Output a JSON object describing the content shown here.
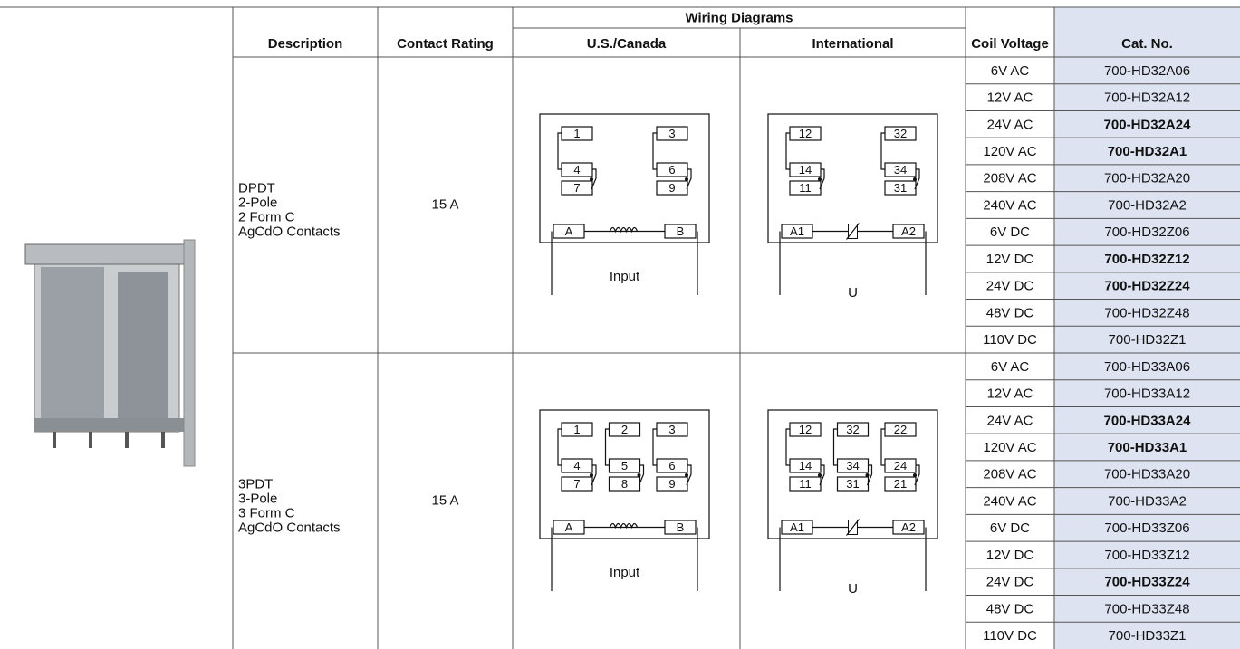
{
  "header": {
    "wiring_diagrams": "Wiring Diagrams",
    "columns": [
      "Description",
      "Contact Rating",
      "U.S./Canada",
      "International",
      "Coil Voltage",
      "Cat. No."
    ]
  },
  "groups": [
    {
      "description": [
        "DPDT",
        "2-Pole",
        "2 Form C",
        "AgCdO Contacts"
      ],
      "contact_rating": "15 A",
      "us_diagram": {
        "top": [
          "1",
          "3"
        ],
        "middle": [
          "4",
          "6"
        ],
        "bottom": [
          "7",
          "9"
        ],
        "coil": [
          "A",
          "B"
        ],
        "label": "Input"
      },
      "intl_diagram": {
        "top": [
          "12",
          "32"
        ],
        "middle": [
          "14",
          "34"
        ],
        "bottom": [
          "11",
          "31"
        ],
        "coil": [
          "A1",
          "A2"
        ],
        "label": "U"
      },
      "rows": [
        {
          "voltage": "6V AC",
          "cat_no": "700-HD32A06",
          "bold": false
        },
        {
          "voltage": "12V AC",
          "cat_no": "700-HD32A12",
          "bold": false
        },
        {
          "voltage": "24V AC",
          "cat_no": "700-HD32A24",
          "bold": true
        },
        {
          "voltage": "120V AC",
          "cat_no": "700-HD32A1",
          "bold": true
        },
        {
          "voltage": "208V AC",
          "cat_no": "700-HD32A20",
          "bold": false
        },
        {
          "voltage": "240V AC",
          "cat_no": "700-HD32A2",
          "bold": false
        },
        {
          "voltage": "6V DC",
          "cat_no": "700-HD32Z06",
          "bold": false
        },
        {
          "voltage": "12V DC",
          "cat_no": "700-HD32Z12",
          "bold": true
        },
        {
          "voltage": "24V DC",
          "cat_no": "700-HD32Z24",
          "bold": true
        },
        {
          "voltage": "48V DC",
          "cat_no": "700-HD32Z48",
          "bold": false
        },
        {
          "voltage": "110V DC",
          "cat_no": "700-HD32Z1",
          "bold": false
        }
      ]
    },
    {
      "description": [
        "3PDT",
        "3-Pole",
        "3 Form C",
        "AgCdO Contacts"
      ],
      "contact_rating": "15 A",
      "us_diagram": {
        "top": [
          "1",
          "2",
          "3"
        ],
        "middle": [
          "4",
          "5",
          "6"
        ],
        "bottom": [
          "7",
          "8",
          "9"
        ],
        "coil": [
          "A",
          "B"
        ],
        "label": "Input"
      },
      "intl_diagram": {
        "top": [
          "12",
          "32",
          "22"
        ],
        "middle": [
          "14",
          "34",
          "24"
        ],
        "bottom": [
          "11",
          "31",
          "21"
        ],
        "coil": [
          "A1",
          "A2"
        ],
        "label": "U"
      },
      "rows": [
        {
          "voltage": "6V AC",
          "cat_no": "700-HD33A06",
          "bold": false
        },
        {
          "voltage": "12V AC",
          "cat_no": "700-HD33A12",
          "bold": false
        },
        {
          "voltage": "24V AC",
          "cat_no": "700-HD33A24",
          "bold": true
        },
        {
          "voltage": "120V AC",
          "cat_no": "700-HD33A1",
          "bold": true
        },
        {
          "voltage": "208V AC",
          "cat_no": "700-HD33A20",
          "bold": false
        },
        {
          "voltage": "240V AC",
          "cat_no": "700-HD33A2",
          "bold": false
        },
        {
          "voltage": "6V DC",
          "cat_no": "700-HD33Z06",
          "bold": false
        },
        {
          "voltage": "12V DC",
          "cat_no": "700-HD33Z12",
          "bold": false
        },
        {
          "voltage": "24V DC",
          "cat_no": "700-HD33Z24",
          "bold": true
        },
        {
          "voltage": "48V DC",
          "cat_no": "700-HD33Z48",
          "bold": false
        },
        {
          "voltage": "110V DC",
          "cat_no": "700-HD33Z1",
          "bold": false
        }
      ]
    }
  ]
}
